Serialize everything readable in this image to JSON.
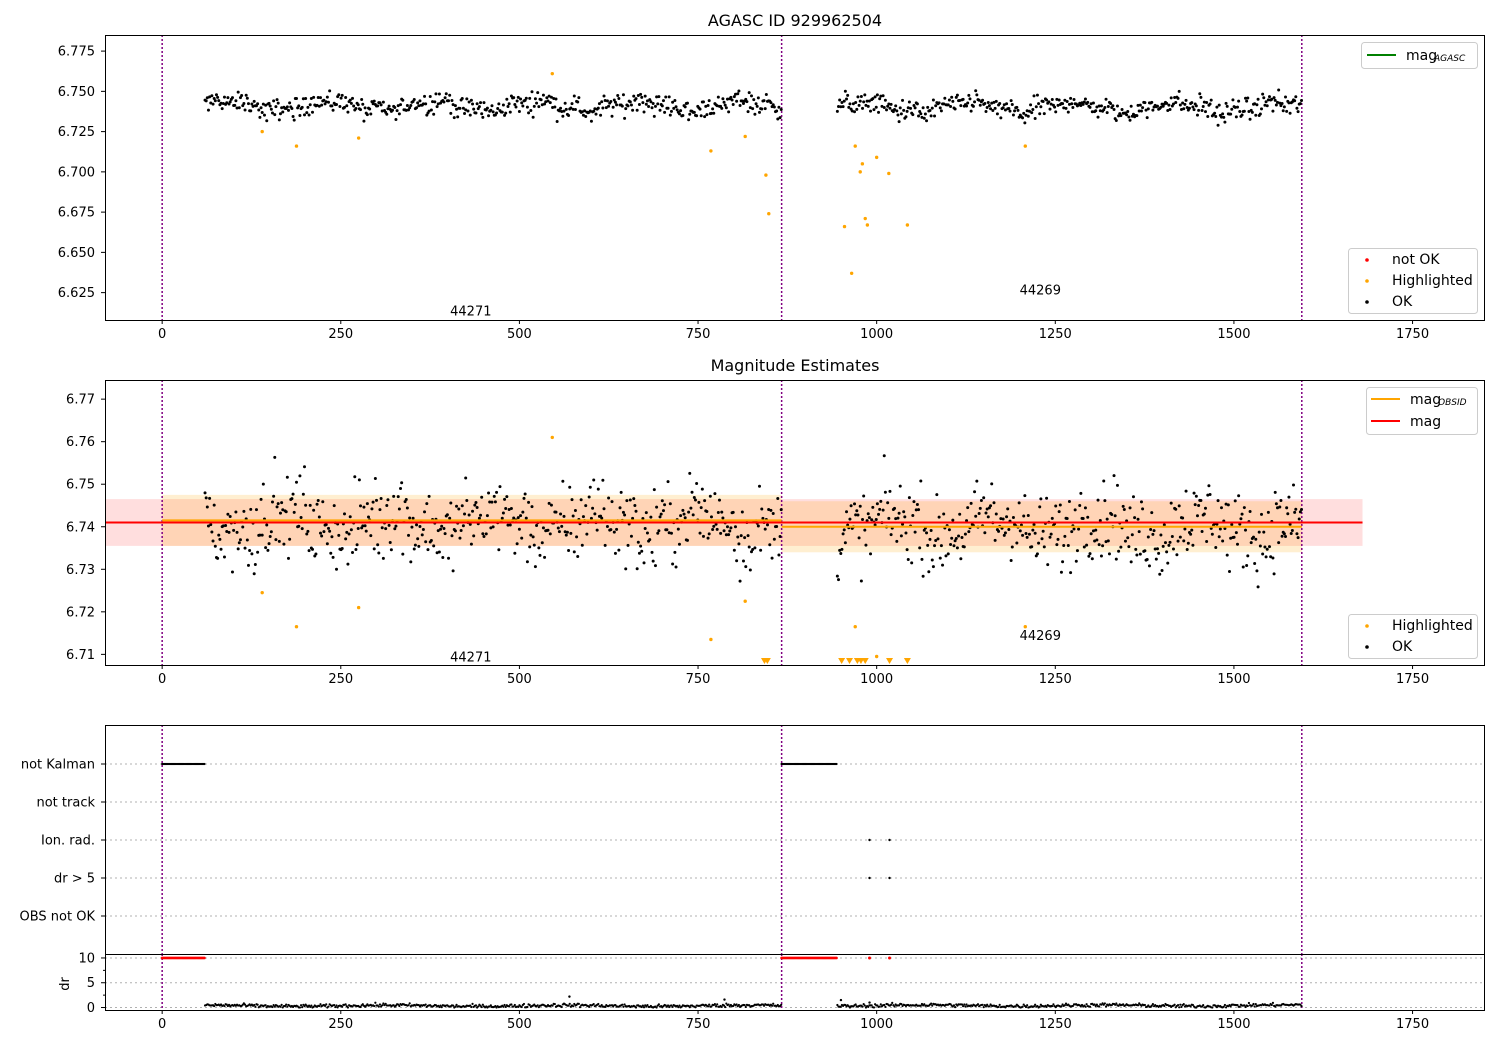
{
  "chart_data": [
    {
      "type": "scatter",
      "title": "AGASC ID 929962504",
      "xlabel": "",
      "ylabel": "",
      "xlim": [
        -80,
        1850
      ],
      "ylim": [
        6.608,
        6.785
      ],
      "xticks": [
        0,
        250,
        500,
        750,
        1000,
        1250,
        1500,
        1750
      ],
      "yticks": [
        6.625,
        6.65,
        6.675,
        6.7,
        6.725,
        6.75,
        6.775
      ],
      "ytick_labels": [
        "6.625",
        "6.650",
        "6.675",
        "6.700",
        "6.725",
        "6.750",
        "6.775"
      ],
      "obsid_boundaries": [
        0,
        867,
        1595
      ],
      "obsid_labels": [
        {
          "text": "44271",
          "x": 432,
          "y": 6.614
        },
        {
          "text": "44269",
          "x": 1229,
          "y": 6.627
        }
      ],
      "ok_segments": [
        [
          60,
          867,
          6.741
        ],
        [
          945,
          1595,
          6.74
        ]
      ],
      "highlighted": [
        [
          140,
          6.725
        ],
        [
          188,
          6.716
        ],
        [
          275,
          6.721
        ],
        [
          546,
          6.761
        ],
        [
          768,
          6.713
        ],
        [
          816,
          6.722
        ],
        [
          845,
          6.698
        ],
        [
          849,
          6.674
        ],
        [
          955,
          6.666
        ],
        [
          965,
          6.637
        ],
        [
          970,
          6.716
        ],
        [
          977,
          6.7
        ],
        [
          980,
          6.705
        ],
        [
          984,
          6.671
        ],
        [
          987,
          6.667
        ],
        [
          1000,
          6.709
        ],
        [
          1017,
          6.699
        ],
        [
          1043,
          6.667
        ],
        [
          1208,
          6.716
        ]
      ],
      "legend_top": {
        "entries": [
          {
            "label": "mag",
            "sub": "AGASC",
            "color": "#008000"
          }
        ],
        "loc": "top-right"
      },
      "legend_bottom": {
        "entries": [
          {
            "label": "not OK",
            "color": "#ff0000"
          },
          {
            "label": "Highlighted",
            "color": "#ffa500"
          },
          {
            "label": "OK",
            "color": "#000000"
          }
        ],
        "loc": "bottom-right"
      }
    },
    {
      "type": "scatter",
      "title": "Magnitude Estimates",
      "xlabel": "",
      "ylabel": "",
      "xlim": [
        -80,
        1850
      ],
      "ylim": [
        6.7075,
        6.7745
      ],
      "xticks": [
        0,
        250,
        500,
        750,
        1000,
        1250,
        1500,
        1750
      ],
      "yticks": [
        6.71,
        6.72,
        6.73,
        6.74,
        6.75,
        6.76,
        6.77
      ],
      "ytick_labels": [
        "6.71",
        "6.72",
        "6.73",
        "6.74",
        "6.75",
        "6.76",
        "6.77"
      ],
      "obsid_boundaries": [
        0,
        867,
        1595
      ],
      "obsid_labels": [
        {
          "text": "44271",
          "x": 432,
          "y": 6.7095
        },
        {
          "text": "44269",
          "x": 1229,
          "y": 6.7145
        }
      ],
      "ok_segments": [
        [
          60,
          867,
          6.741
        ],
        [
          945,
          1595,
          6.74
        ]
      ],
      "highlighted": [
        [
          140,
          6.7245
        ],
        [
          188,
          6.7165
        ],
        [
          275,
          6.721
        ],
        [
          546,
          6.761
        ],
        [
          768,
          6.7135
        ],
        [
          816,
          6.7225
        ],
        [
          970,
          6.7165
        ],
        [
          1000,
          6.7095
        ],
        [
          1208,
          6.7165
        ]
      ],
      "highlighted_below_range": [
        843,
        847,
        951,
        962,
        973,
        978,
        984,
        1018,
        1043
      ],
      "mag_line": {
        "value": 6.741,
        "lo": 6.7355,
        "hi": 6.7465,
        "x": [
          -80,
          1680
        ],
        "color": "#ff0000"
      },
      "mag_obsid": [
        {
          "value": 6.7415,
          "lo": 6.7355,
          "hi": 6.7475,
          "x": [
            0,
            867
          ]
        },
        {
          "value": 6.74,
          "lo": 6.734,
          "hi": 6.746,
          "x": [
            867,
            1595
          ]
        }
      ],
      "legend_top": {
        "entries": [
          {
            "label": "mag",
            "sub": "OBSID",
            "color": "#ffa500"
          },
          {
            "label": "mag",
            "color": "#ff0000"
          }
        ],
        "loc": "top-right"
      },
      "legend_bottom": {
        "entries": [
          {
            "label": "Highlighted",
            "color": "#ffa500"
          },
          {
            "label": "OK",
            "color": "#000000"
          }
        ],
        "loc": "bottom-right"
      }
    },
    {
      "type": "scatter",
      "title": "",
      "xlim": [
        -80,
        1850
      ],
      "xticks": [
        0,
        250,
        500,
        750,
        1000,
        1250,
        1500,
        1750
      ],
      "flag_rows": [
        "not Kalman",
        "not track",
        "Ion. rad.",
        "dr > 5",
        "OBS not OK"
      ],
      "flags": {
        "not Kalman": [
          [
            0,
            60
          ],
          [
            867,
            945
          ]
        ],
        "not track": [],
        "Ion. rad.": [
          990,
          1018
        ],
        "dr > 5": [
          990,
          1018
        ],
        "OBS not OK": []
      },
      "obsid_boundaries": [
        0,
        867,
        1595
      ],
      "dr_panel": {
        "ylabel": "dr",
        "ylim": [
          -0.5,
          10.8
        ],
        "yticks": [
          0,
          5,
          10
        ],
        "ok_segments": [
          [
            60,
            867,
            0.35
          ],
          [
            945,
            1595,
            0.4
          ]
        ],
        "outliers": [
          [
            570,
            2.2
          ],
          [
            787,
            1.6
          ],
          [
            950,
            1.5
          ],
          [
            990,
            1.0
          ]
        ],
        "clipped": {
          "value": 10,
          "color": "#ff0000",
          "segments": [
            [
              0,
              60
            ],
            [
              867,
              945
            ]
          ],
          "points": [
            990,
            1018
          ]
        }
      }
    }
  ]
}
